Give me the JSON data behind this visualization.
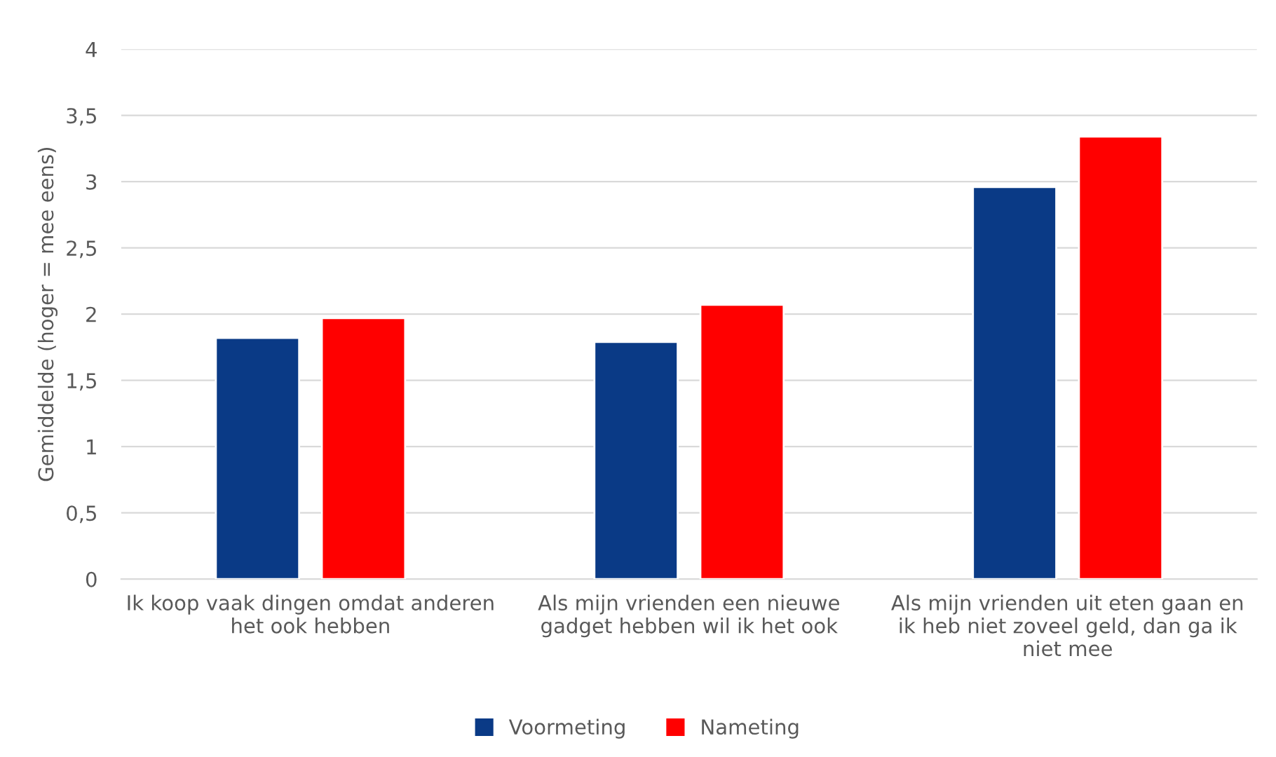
{
  "chart_data": {
    "type": "bar",
    "ylabel": "Gemiddelde (hoger = mee eens)",
    "categories": [
      "Ik koop vaak dingen omdat anderen het ook hebben",
      "Als mijn vrienden een nieuwe gadget hebben wil ik het ook",
      "Als mijn vrienden uit eten gaan en ik heb niet zoveel geld, dan ga ik niet mee"
    ],
    "series": [
      {
        "name": "Voormeting",
        "color": "#0a3a86",
        "values": [
          1.82,
          1.79,
          2.96
        ]
      },
      {
        "name": "Nameting",
        "color": "#ff0000",
        "values": [
          1.97,
          2.07,
          3.34
        ]
      }
    ],
    "ylim": [
      0,
      4
    ],
    "yticks": [
      0,
      {
        "value": 0.5,
        "label": "0,5"
      },
      1,
      {
        "value": 1.5,
        "label": "1,5"
      },
      2,
      {
        "value": 2.5,
        "label": "2,5"
      },
      3,
      {
        "value": 3.5,
        "label": "3,5"
      },
      4
    ],
    "grid": "y",
    "legend": "bottom"
  }
}
